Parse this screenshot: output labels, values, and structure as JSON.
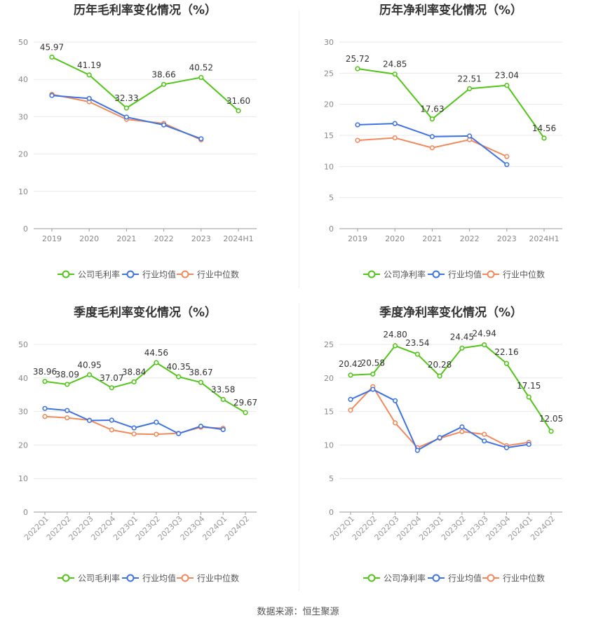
{
  "source_text": "数据来源：恒生聚源",
  "chart_data": [
    {
      "type": "line",
      "title": "历年毛利率变化情况（%）",
      "categories": [
        "2019",
        "2020",
        "2021",
        "2022",
        "2023",
        "2024H1"
      ],
      "ylim": [
        0,
        50
      ],
      "yticks": [
        0,
        10,
        20,
        30,
        40,
        50
      ],
      "grid": true,
      "legend_position": "bottom",
      "series": [
        {
          "name": "公司毛利率",
          "color": "#52c41a",
          "values": [
            45.97,
            41.19,
            32.33,
            38.66,
            40.52,
            31.6
          ],
          "labels": true
        },
        {
          "name": "行业均值",
          "color": "#3f73e0",
          "values": [
            35.7,
            34.9,
            29.9,
            27.8,
            24.1,
            null
          ]
        },
        {
          "name": "行业中位数",
          "color": "#f08a5d",
          "values": [
            36.0,
            34.0,
            29.3,
            28.2,
            23.8,
            null
          ]
        }
      ]
    },
    {
      "type": "line",
      "title": "历年净利率变化情况（%）",
      "categories": [
        "2019",
        "2020",
        "2021",
        "2022",
        "2023",
        "2024H1"
      ],
      "ylim": [
        0,
        30
      ],
      "yticks": [
        0,
        5,
        10,
        15,
        20,
        25,
        30
      ],
      "grid": true,
      "legend_position": "bottom",
      "series": [
        {
          "name": "公司净利率",
          "color": "#52c41a",
          "values": [
            25.72,
            24.85,
            17.63,
            22.51,
            23.04,
            14.56
          ],
          "labels": true
        },
        {
          "name": "行业均值",
          "color": "#3f73e0",
          "values": [
            16.7,
            16.9,
            14.8,
            14.9,
            10.3,
            null
          ]
        },
        {
          "name": "行业中位数",
          "color": "#f08a5d",
          "values": [
            14.2,
            14.6,
            13.0,
            14.3,
            11.6,
            null
          ]
        }
      ]
    },
    {
      "type": "line",
      "title": "季度毛利率变化情况（%）",
      "categories": [
        "2022Q1",
        "2022Q2",
        "2022Q3",
        "2022Q4",
        "2023Q1",
        "2023Q2",
        "2023Q3",
        "2023Q4",
        "2024Q1",
        "2024Q2"
      ],
      "ylim": [
        0,
        50
      ],
      "yticks": [
        0,
        10,
        20,
        30,
        40,
        50
      ],
      "grid": true,
      "legend_position": "bottom",
      "series": [
        {
          "name": "公司毛利率",
          "color": "#52c41a",
          "values": [
            38.96,
            38.09,
            40.95,
            37.07,
            38.84,
            44.56,
            40.35,
            38.67,
            33.58,
            29.67
          ],
          "labels": true
        },
        {
          "name": "行业均值",
          "color": "#3f73e0",
          "values": [
            30.9,
            30.3,
            27.3,
            27.4,
            25.1,
            26.8,
            23.4,
            25.6,
            24.6,
            null
          ]
        },
        {
          "name": "行业中位数",
          "color": "#f08a5d",
          "values": [
            28.5,
            28.1,
            27.4,
            24.5,
            23.3,
            23.2,
            23.5,
            25.3,
            25.0,
            null
          ]
        }
      ]
    },
    {
      "type": "line",
      "title": "季度净利率变化情况（%）",
      "categories": [
        "2022Q1",
        "2022Q2",
        "2022Q3",
        "2022Q4",
        "2023Q1",
        "2023Q2",
        "2023Q3",
        "2023Q4",
        "2024Q1",
        "2024Q2"
      ],
      "ylim": [
        0,
        25
      ],
      "yticks": [
        0,
        5,
        10,
        15,
        20,
        25
      ],
      "grid": true,
      "legend_position": "bottom",
      "series": [
        {
          "name": "公司净利率",
          "color": "#52c41a",
          "values": [
            20.42,
            20.58,
            24.8,
            23.54,
            20.28,
            24.45,
            24.94,
            22.16,
            17.15,
            12.05
          ],
          "labels": true
        },
        {
          "name": "行业均值",
          "color": "#3f73e0",
          "values": [
            16.8,
            18.3,
            16.6,
            9.2,
            11.1,
            12.7,
            10.6,
            9.6,
            10.1,
            null
          ]
        },
        {
          "name": "行业中位数",
          "color": "#f08a5d",
          "values": [
            15.2,
            18.7,
            13.3,
            9.6,
            11.0,
            12.0,
            11.6,
            9.9,
            10.4,
            null
          ]
        }
      ]
    }
  ]
}
